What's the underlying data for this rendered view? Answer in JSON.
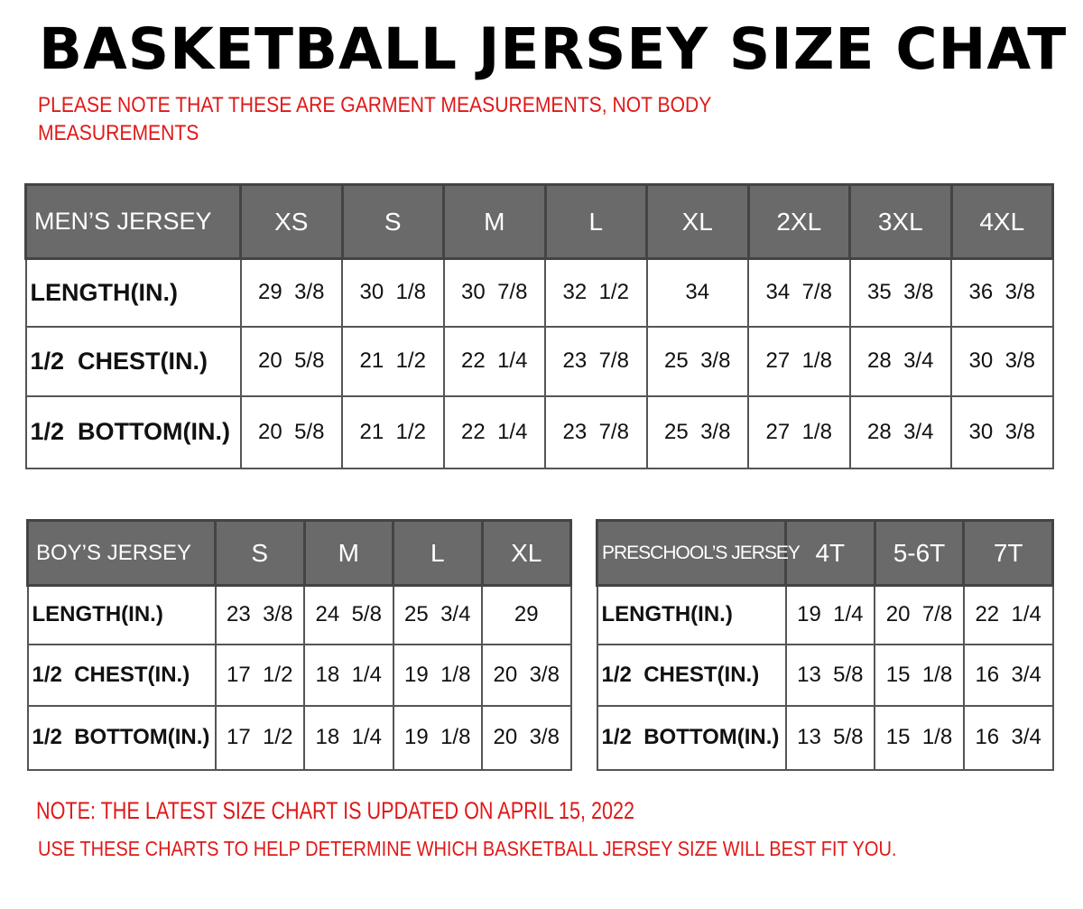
{
  "title": "BASKETBALL JERSEY SIZE CHAT",
  "note_top_1": "PLEASE NOTE THAT THESE ARE GARMENT MEASUREMENTS, NOT BODY",
  "note_top_2": "MEASUREMENTS",
  "mens": {
    "header": [
      "MEN’S JERSEY",
      "XS",
      "S",
      "M",
      "L",
      "XL",
      "2XL",
      "3XL",
      "4XL"
    ],
    "rows": [
      [
        "LENGTH(IN.)",
        "29  3/8",
        "30  1/8",
        "30  7/8",
        "32  1/2",
        "34",
        "34  7/8",
        "35  3/8",
        "36  3/8"
      ],
      [
        "1/2  CHEST(IN.)",
        "20  5/8",
        "21  1/2",
        "22  1/4",
        "23  7/8",
        "25  3/8",
        "27  1/8",
        "28  3/4",
        "30  3/8"
      ],
      [
        "1/2  BOTTOM(IN.)",
        "20  5/8",
        "21  1/2",
        "22  1/4",
        "23  7/8",
        "25  3/8",
        "27  1/8",
        "28  3/4",
        "30  3/8"
      ]
    ]
  },
  "boys": {
    "header": [
      "BOY’S JERSEY",
      "S",
      "M",
      "L",
      "XL"
    ],
    "rows": [
      [
        "LENGTH(IN.)",
        "23  3/8",
        "24  5/8",
        "25  3/4",
        "29"
      ],
      [
        "1/2  CHEST(IN.)",
        "17  1/2",
        "18  1/4",
        "19  1/8",
        "20  3/8"
      ],
      [
        "1/2  BOTTOM(IN.)",
        "17  1/2",
        "18  1/4",
        "19  1/8",
        "20  3/8"
      ]
    ]
  },
  "preschool": {
    "header": [
      "PRESCHOOL’S JERSEY",
      "4T",
      "5-6T",
      "7T"
    ],
    "rows": [
      [
        "LENGTH(IN.)",
        "19  1/4",
        "20  7/8",
        "22  1/4"
      ],
      [
        "1/2  CHEST(IN.)",
        "13  5/8",
        "15  1/8",
        "16  3/4"
      ],
      [
        "1/2  BOTTOM(IN.)",
        "13  5/8",
        "15  1/8",
        "16  3/4"
      ]
    ]
  },
  "note_bottom_1": "NOTE: THE LATEST SIZE CHART IS UPDATED ON APRIL 15, 2022",
  "note_bottom_2": "USE THESE CHARTS TO HELP DETERMINE WHICH  BASKETBALL JERSEY  SIZE WILL BEST FIT YOU.",
  "colors": {
    "header_bg": "#6a6a6a",
    "note_red": "#e01818"
  }
}
